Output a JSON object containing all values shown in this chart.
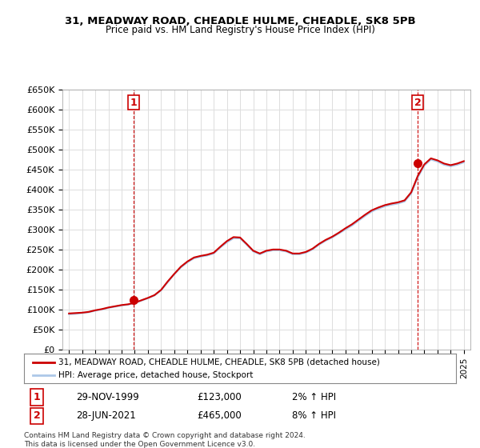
{
  "title": "31, MEADWAY ROAD, CHEADLE HULME, CHEADLE, SK8 5PB",
  "subtitle": "Price paid vs. HM Land Registry's House Price Index (HPI)",
  "legend_line1": "31, MEADWAY ROAD, CHEADLE HULME, CHEADLE, SK8 5PB (detached house)",
  "legend_line2": "HPI: Average price, detached house, Stockport",
  "sale1_label": "1",
  "sale1_date": "29-NOV-1999",
  "sale1_price": "£123,000",
  "sale1_hpi": "2% ↑ HPI",
  "sale2_label": "2",
  "sale2_date": "28-JUN-2021",
  "sale2_price": "£465,000",
  "sale2_hpi": "8% ↑ HPI",
  "footer": "Contains HM Land Registry data © Crown copyright and database right 2024.\nThis data is licensed under the Open Government Licence v3.0.",
  "hpi_color": "#adc8e8",
  "price_color": "#cc0000",
  "vline_color": "#cc0000",
  "background_color": "#ffffff",
  "grid_color": "#dddddd",
  "ylim": [
    0,
    650000
  ],
  "yticks": [
    0,
    50000,
    100000,
    150000,
    200000,
    250000,
    300000,
    350000,
    400000,
    450000,
    500000,
    550000,
    600000,
    650000
  ],
  "ytick_labels": [
    "£0",
    "£50K",
    "£100K",
    "£150K",
    "£200K",
    "£250K",
    "£300K",
    "£350K",
    "£400K",
    "£450K",
    "£500K",
    "£550K",
    "£600K",
    "£650K"
  ],
  "xlim_start": 1994.5,
  "xlim_end": 2025.5,
  "sale1_year": 1999.91,
  "sale1_value": 123000,
  "sale2_year": 2021.49,
  "sale2_value": 465000,
  "hpi_years": [
    1995,
    1995.5,
    1996,
    1996.5,
    1997,
    1997.5,
    1998,
    1998.5,
    1999,
    1999.5,
    2000,
    2000.5,
    2001,
    2001.5,
    2002,
    2002.5,
    2003,
    2003.5,
    2004,
    2004.5,
    2005,
    2005.5,
    2006,
    2006.5,
    2007,
    2007.5,
    2008,
    2008.5,
    2009,
    2009.5,
    2010,
    2010.5,
    2011,
    2011.5,
    2012,
    2012.5,
    2013,
    2013.5,
    2014,
    2014.5,
    2015,
    2015.5,
    2016,
    2016.5,
    2017,
    2017.5,
    2018,
    2018.5,
    2019,
    2019.5,
    2020,
    2020.5,
    2021,
    2021.5,
    2022,
    2022.5,
    2023,
    2023.5,
    2024,
    2024.5,
    2025
  ],
  "hpi_values": [
    88000,
    89000,
    91000,
    93000,
    97000,
    100000,
    104000,
    107000,
    110000,
    112000,
    116000,
    122000,
    128000,
    135000,
    148000,
    168000,
    188000,
    205000,
    218000,
    228000,
    232000,
    235000,
    240000,
    255000,
    268000,
    278000,
    278000,
    262000,
    245000,
    238000,
    245000,
    248000,
    248000,
    245000,
    238000,
    238000,
    242000,
    250000,
    262000,
    272000,
    280000,
    290000,
    300000,
    310000,
    322000,
    334000,
    345000,
    352000,
    358000,
    362000,
    365000,
    370000,
    390000,
    430000,
    460000,
    475000,
    470000,
    462000,
    458000,
    462000,
    468000
  ],
  "price_years": [
    1995,
    1995.5,
    1996,
    1996.5,
    1997,
    1997.5,
    1998,
    1998.5,
    1999,
    1999.5,
    2000,
    2000.5,
    2001,
    2001.5,
    2002,
    2002.5,
    2003,
    2003.5,
    2004,
    2004.5,
    2005,
    2005.5,
    2006,
    2006.5,
    2007,
    2007.5,
    2008,
    2008.5,
    2009,
    2009.5,
    2010,
    2010.5,
    2011,
    2011.5,
    2012,
    2012.5,
    2013,
    2013.5,
    2014,
    2014.5,
    2015,
    2015.5,
    2016,
    2016.5,
    2017,
    2017.5,
    2018,
    2018.5,
    2019,
    2019.5,
    2020,
    2020.5,
    2021,
    2021.5,
    2022,
    2022.5,
    2023,
    2023.5,
    2024,
    2024.5,
    2025
  ],
  "price_values": [
    90000,
    91000,
    92000,
    94000,
    98000,
    101000,
    105000,
    108000,
    111000,
    113000,
    117000,
    123000,
    129000,
    136000,
    149000,
    170000,
    189000,
    207000,
    220000,
    230000,
    234000,
    237000,
    242000,
    257000,
    271000,
    281000,
    280000,
    264000,
    247000,
    240000,
    247000,
    250000,
    250000,
    247000,
    240000,
    240000,
    244000,
    252000,
    264000,
    274000,
    282000,
    292000,
    303000,
    313000,
    325000,
    337000,
    348000,
    355000,
    361000,
    365000,
    368000,
    373000,
    393000,
    434000,
    463000,
    478000,
    473000,
    465000,
    461000,
    465000,
    471000
  ]
}
